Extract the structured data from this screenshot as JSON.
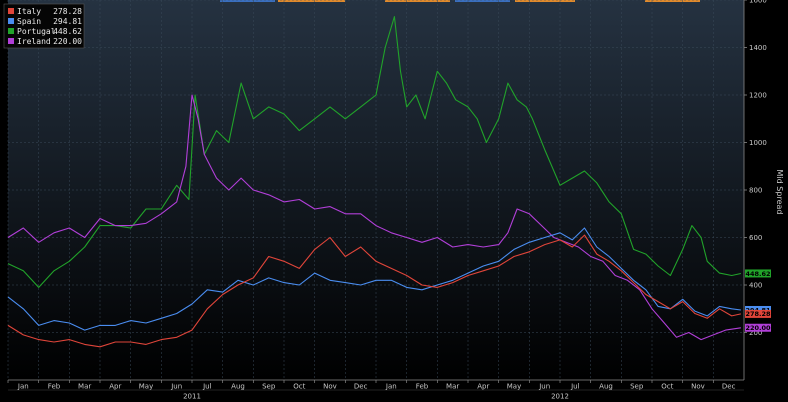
{
  "colors": {
    "background_top": "#253241",
    "background_bottom": "#000000",
    "grid": "#3a4a5a",
    "axis": "#8a8a8a",
    "top_strip": "#3a6fbf",
    "top_strip_accent": "#e08a2c"
  },
  "chart_data": {
    "type": "line",
    "title": "",
    "xlabel": "",
    "ylabel": "Mid Spread",
    "ylim": [
      0,
      1600
    ],
    "y_ticks": [
      200,
      400,
      600,
      800,
      1000,
      1200,
      1400,
      1600
    ],
    "y_tick_labels": [
      "200",
      "400",
      "600",
      "800",
      "1000",
      "1200",
      "1400",
      "1600"
    ],
    "x_range": [
      0,
      24
    ],
    "x_unit": "months since Jan 2011",
    "month_labels": [
      "Jan",
      "Feb",
      "Mar",
      "Apr",
      "May",
      "Jun",
      "Jul",
      "Aug",
      "Sep",
      "Oct",
      "Nov",
      "Dec",
      "Jan",
      "Feb",
      "Mar",
      "Apr",
      "May",
      "Jun",
      "Jul",
      "Aug",
      "Sep",
      "Oct",
      "Nov",
      "Dec"
    ],
    "year_labels": [
      {
        "label": "2011",
        "x": 6
      },
      {
        "label": "2012",
        "x": 18
      }
    ],
    "grid": true,
    "legend": {
      "position": "top-left",
      "entries": [
        {
          "name": "Italy",
          "value": "278.28",
          "color": "#e0453a"
        },
        {
          "name": "Spain",
          "value": "294.81",
          "color": "#4a8df0"
        },
        {
          "name": "Portugal",
          "value": "448.62",
          "color": "#21a32a"
        },
        {
          "name": "Ireland",
          "value": "220.00",
          "color": "#b13fd8"
        }
      ]
    },
    "series": [
      {
        "name": "Portugal",
        "color": "#21a32a",
        "x": [
          0,
          0.5,
          1,
          1.5,
          2,
          2.5,
          3,
          3.5,
          4,
          4.5,
          5,
          5.5,
          5.9,
          6.1,
          6.4,
          6.8,
          7.2,
          7.6,
          8,
          8.5,
          9,
          9.5,
          10,
          10.5,
          11,
          11.5,
          12,
          12.3,
          12.6,
          12.8,
          13,
          13.3,
          13.6,
          14,
          14.3,
          14.6,
          15,
          15.3,
          15.6,
          16,
          16.3,
          16.6,
          16.9,
          17.1,
          17.5,
          18,
          18.4,
          18.8,
          19.2,
          19.6,
          20,
          20.4,
          20.8,
          21.2,
          21.6,
          22,
          22.3,
          22.6,
          22.8,
          23.2,
          23.6,
          23.9
        ],
        "values": [
          490,
          460,
          390,
          460,
          500,
          560,
          650,
          650,
          640,
          720,
          720,
          820,
          760,
          1200,
          950,
          1050,
          1000,
          1250,
          1100,
          1150,
          1120,
          1050,
          1100,
          1150,
          1100,
          1150,
          1200,
          1400,
          1530,
          1300,
          1150,
          1200,
          1100,
          1300,
          1250,
          1180,
          1150,
          1100,
          1000,
          1100,
          1250,
          1180,
          1150,
          1100,
          970,
          820,
          850,
          880,
          830,
          750,
          700,
          550,
          530,
          480,
          440,
          550,
          650,
          600,
          500,
          450,
          440,
          448.62
        ]
      },
      {
        "name": "Ireland",
        "color": "#b13fd8",
        "x": [
          0,
          0.5,
          1,
          1.5,
          2,
          2.5,
          3,
          3.5,
          4,
          4.5,
          5,
          5.5,
          5.8,
          6,
          6.2,
          6.4,
          6.8,
          7.2,
          7.6,
          8,
          8.5,
          9,
          9.5,
          10,
          10.5,
          11,
          11.5,
          12,
          12.5,
          13,
          13.5,
          14,
          14.5,
          15,
          15.5,
          16,
          16.3,
          16.6,
          17,
          17.4,
          17.8,
          18.2,
          18.6,
          19,
          19.4,
          19.8,
          20.2,
          20.6,
          21,
          21.4,
          21.8,
          22.2,
          22.6,
          23,
          23.4,
          23.9
        ],
        "values": [
          600,
          640,
          580,
          620,
          640,
          600,
          680,
          650,
          650,
          660,
          700,
          750,
          900,
          1200,
          1100,
          950,
          850,
          800,
          850,
          800,
          780,
          750,
          760,
          720,
          730,
          700,
          700,
          650,
          620,
          600,
          580,
          600,
          560,
          570,
          560,
          570,
          620,
          720,
          700,
          650,
          600,
          580,
          560,
          520,
          500,
          440,
          420,
          380,
          300,
          240,
          180,
          200,
          170,
          190,
          210,
          220.0
        ]
      },
      {
        "name": "Spain",
        "color": "#4a8df0",
        "x": [
          0,
          0.5,
          1,
          1.5,
          2,
          2.5,
          3,
          3.5,
          4,
          4.5,
          5,
          5.5,
          6,
          6.5,
          7,
          7.5,
          8,
          8.5,
          9,
          9.5,
          10,
          10.5,
          11,
          11.5,
          12,
          12.5,
          13,
          13.5,
          14,
          14.5,
          15,
          15.5,
          16,
          16.5,
          17,
          17.5,
          18,
          18.4,
          18.8,
          19.2,
          19.6,
          20,
          20.4,
          20.8,
          21.2,
          21.6,
          22,
          22.4,
          22.8,
          23.2,
          23.6,
          23.9
        ],
        "values": [
          350,
          300,
          230,
          250,
          240,
          210,
          230,
          230,
          250,
          240,
          260,
          280,
          320,
          380,
          370,
          420,
          400,
          430,
          410,
          400,
          450,
          420,
          410,
          400,
          420,
          420,
          390,
          380,
          400,
          420,
          450,
          480,
          500,
          550,
          580,
          600,
          620,
          590,
          640,
          560,
          520,
          470,
          420,
          380,
          310,
          300,
          340,
          290,
          270,
          310,
          300,
          294.81
        ]
      },
      {
        "name": "Italy",
        "color": "#e0453a",
        "x": [
          0,
          0.5,
          1,
          1.5,
          2,
          2.5,
          3,
          3.5,
          4,
          4.5,
          5,
          5.5,
          6,
          6.5,
          7,
          7.5,
          8,
          8.5,
          9,
          9.5,
          10,
          10.5,
          11,
          11.5,
          12,
          12.5,
          13,
          13.5,
          14,
          14.5,
          15,
          15.5,
          16,
          16.5,
          17,
          17.5,
          18,
          18.4,
          18.8,
          19.2,
          19.6,
          20,
          20.4,
          20.8,
          21.2,
          21.6,
          22,
          22.4,
          22.8,
          23.2,
          23.6,
          23.9
        ],
        "values": [
          230,
          190,
          170,
          160,
          170,
          150,
          140,
          160,
          160,
          150,
          170,
          180,
          210,
          300,
          360,
          400,
          430,
          520,
          500,
          470,
          550,
          600,
          520,
          560,
          500,
          470,
          440,
          400,
          390,
          410,
          440,
          460,
          480,
          520,
          540,
          570,
          590,
          560,
          610,
          530,
          500,
          460,
          410,
          360,
          330,
          300,
          330,
          280,
          260,
          300,
          270,
          278.28
        ]
      }
    ]
  }
}
